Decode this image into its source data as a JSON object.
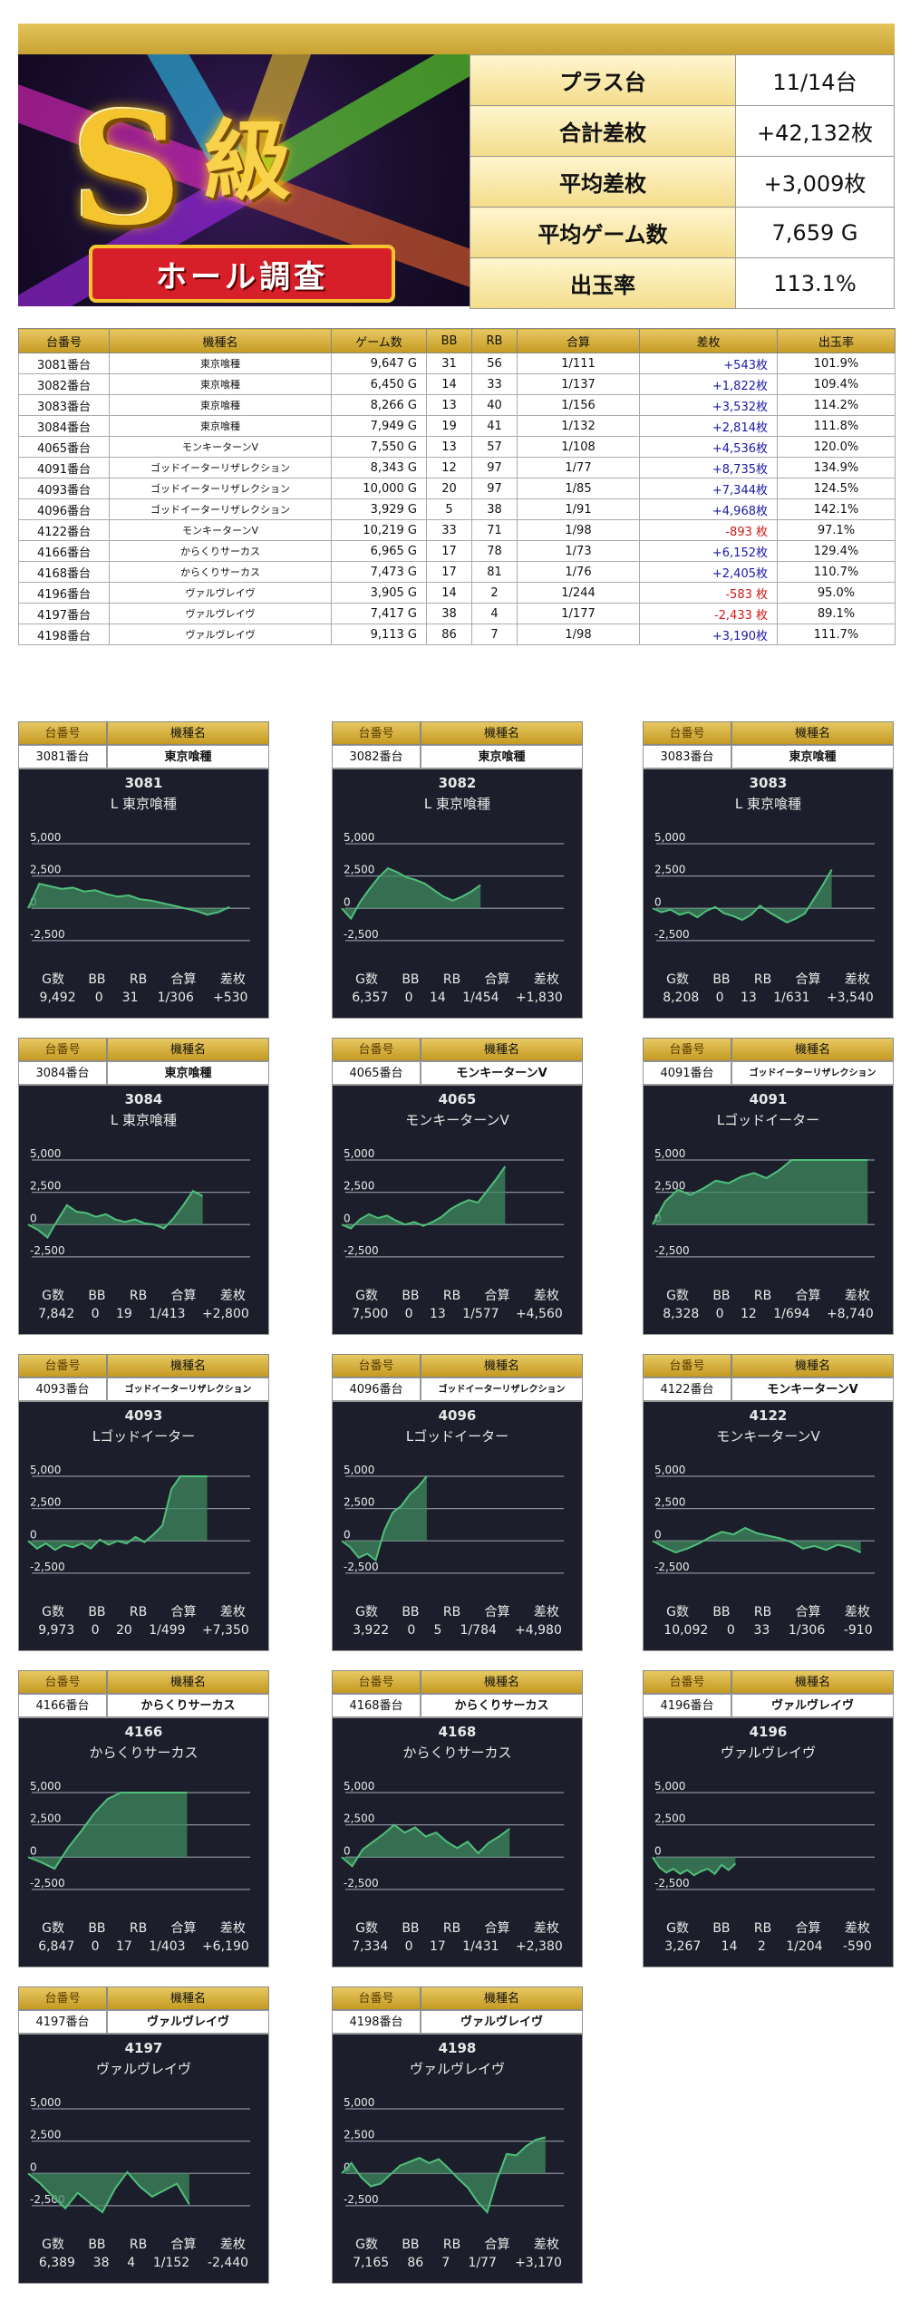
{
  "banner": {
    "logo_s": "S",
    "logo_kyu": "級",
    "ribbon": "ホール調査"
  },
  "summary": [
    {
      "label": "プラス台",
      "value": "11/14台"
    },
    {
      "label": "合計差枚",
      "value": "+42,132枚"
    },
    {
      "label": "平均差枚",
      "value": "+3,009枚"
    },
    {
      "label": "平均ゲーム数",
      "value": "7,659 G"
    },
    {
      "label": "出玉率",
      "value": "113.1%"
    }
  ],
  "table": {
    "headers": [
      "台番号",
      "機種名",
      "ゲーム数",
      "BB",
      "RB",
      "合算",
      "差枚",
      "出玉率"
    ],
    "rows": [
      {
        "no": "3081番台",
        "name": "東京喰種",
        "games": "9,647 G",
        "bb": "31",
        "rb": "56",
        "gassan": "1/111",
        "diff": "+543枚",
        "rate": "101.9%"
      },
      {
        "no": "3082番台",
        "name": "東京喰種",
        "games": "6,450 G",
        "bb": "14",
        "rb": "33",
        "gassan": "1/137",
        "diff": "+1,822枚",
        "rate": "109.4%"
      },
      {
        "no": "3083番台",
        "name": "東京喰種",
        "games": "8,266 G",
        "bb": "13",
        "rb": "40",
        "gassan": "1/156",
        "diff": "+3,532枚",
        "rate": "114.2%"
      },
      {
        "no": "3084番台",
        "name": "東京喰種",
        "games": "7,949 G",
        "bb": "19",
        "rb": "41",
        "gassan": "1/132",
        "diff": "+2,814枚",
        "rate": "111.8%"
      },
      {
        "no": "4065番台",
        "name": "モンキーターンV",
        "games": "7,550 G",
        "bb": "13",
        "rb": "57",
        "gassan": "1/108",
        "diff": "+4,536枚",
        "rate": "120.0%"
      },
      {
        "no": "4091番台",
        "name": "ゴッドイーターリザレクション",
        "games": "8,343 G",
        "bb": "12",
        "rb": "97",
        "gassan": "1/77",
        "diff": "+8,735枚",
        "rate": "134.9%"
      },
      {
        "no": "4093番台",
        "name": "ゴッドイーターリザレクション",
        "games": "10,000 G",
        "bb": "20",
        "rb": "97",
        "gassan": "1/85",
        "diff": "+7,344枚",
        "rate": "124.5%"
      },
      {
        "no": "4096番台",
        "name": "ゴッドイーターリザレクション",
        "games": "3,929 G",
        "bb": "5",
        "rb": "38",
        "gassan": "1/91",
        "diff": "+4,968枚",
        "rate": "142.1%"
      },
      {
        "no": "4122番台",
        "name": "モンキーターンV",
        "games": "10,219 G",
        "bb": "33",
        "rb": "71",
        "gassan": "1/98",
        "diff": "-893 枚",
        "rate": "97.1%"
      },
      {
        "no": "4166番台",
        "name": "からくりサーカス",
        "games": "6,965 G",
        "bb": "17",
        "rb": "78",
        "gassan": "1/73",
        "diff": "+6,152枚",
        "rate": "129.4%"
      },
      {
        "no": "4168番台",
        "name": "からくりサーカス",
        "games": "7,473 G",
        "bb": "17",
        "rb": "81",
        "gassan": "1/76",
        "diff": "+2,405枚",
        "rate": "110.7%"
      },
      {
        "no": "4196番台",
        "name": "ヴァルヴレイヴ",
        "games": "3,905 G",
        "bb": "14",
        "rb": "2",
        "gassan": "1/244",
        "diff": "-583 枚",
        "rate": "95.0%"
      },
      {
        "no": "4197番台",
        "name": "ヴァルヴレイヴ",
        "games": "7,417 G",
        "bb": "38",
        "rb": "4",
        "gassan": "1/177",
        "diff": "-2,433 枚",
        "rate": "89.1%"
      },
      {
        "no": "4198番台",
        "name": "ヴァルヴレイヴ",
        "games": "9,113 G",
        "bb": "86",
        "rb": "7",
        "gassan": "1/98",
        "diff": "+3,190枚",
        "rate": "111.7%"
      }
    ]
  },
  "card_headers": {
    "no": "台番号",
    "name": "機種名"
  },
  "stat_labels": [
    "G数",
    "BB",
    "RB",
    "合算",
    "差枚"
  ],
  "colors": {
    "positive": "#1a1aa8",
    "negative": "#d01818",
    "graph_line": "#4fbf7a",
    "graph_fill": "#3f8a60",
    "panel_bg": "#1c1f2b"
  },
  "cards": [
    {
      "no": "3081番台",
      "name": "東京喰種",
      "panel_no": "3081",
      "panel_name": "L 東京喰種",
      "stats": [
        "9,492",
        "0",
        "31",
        "1/306",
        "+530"
      ],
      "graph": {
        "y": [
          0,
          1900,
          1700,
          1500,
          1600,
          1300,
          1400,
          1100,
          900,
          1000,
          700,
          600,
          400,
          200,
          0,
          -200,
          -500,
          -300,
          100
        ],
        "x_end": 0.9
      }
    },
    {
      "no": "3082番台",
      "name": "東京喰種",
      "panel_no": "3082",
      "panel_name": "L 東京喰種",
      "stats": [
        "6,357",
        "0",
        "14",
        "1/454",
        "+1,830"
      ],
      "graph": {
        "y": [
          0,
          -800,
          500,
          1500,
          2400,
          3100,
          2800,
          2400,
          2200,
          1900,
          1400,
          900,
          600,
          900,
          1300,
          1800
        ],
        "x_end": 0.62
      }
    },
    {
      "no": "3083番台",
      "name": "東京喰種",
      "panel_no": "3083",
      "panel_name": "L 東京喰種",
      "stats": [
        "8,208",
        "0",
        "13",
        "1/631",
        "+3,540"
      ],
      "graph": {
        "y": [
          0,
          -300,
          -100,
          -500,
          -300,
          -700,
          -200,
          100,
          -400,
          -600,
          -900,
          -500,
          200,
          -300,
          -700,
          -1100,
          -800,
          -400,
          700,
          1800,
          3000
        ],
        "x_end": 0.8
      }
    },
    {
      "no": "3084番台",
      "name": "東京喰種",
      "panel_no": "3084",
      "panel_name": "L 東京喰種",
      "stats": [
        "7,842",
        "0",
        "19",
        "1/413",
        "+2,800"
      ],
      "graph": {
        "y": [
          0,
          -400,
          -1000,
          300,
          1500,
          1000,
          900,
          600,
          800,
          400,
          200,
          400,
          100,
          0,
          -300,
          500,
          1500,
          2600,
          2200
        ],
        "x_end": 0.78
      }
    },
    {
      "no": "4065番台",
      "name": "モンキーターンV",
      "panel_no": "4065",
      "panel_name": "モンキーターンV",
      "stats": [
        "7,500",
        "0",
        "13",
        "1/577",
        "+4,560"
      ],
      "graph": {
        "y": [
          0,
          -300,
          400,
          800,
          500,
          700,
          300,
          0,
          200,
          -100,
          200,
          600,
          1200,
          1600,
          1900,
          1700,
          2600,
          3500,
          4500
        ],
        "x_end": 0.73
      }
    },
    {
      "no": "4091番台",
      "name": "ゴッドイーターリザレクション",
      "panel_no": "4091",
      "panel_name": "Lゴッドイーター",
      "stats": [
        "8,328",
        "0",
        "12",
        "1/694",
        "+8,740"
      ],
      "graph": {
        "y": [
          0,
          1800,
          2700,
          2300,
          2800,
          3400,
          3200,
          3700,
          4000,
          3600,
          4200,
          5000,
          5000,
          5000,
          5000,
          5000,
          5000,
          5000
        ],
        "x_end": 0.96
      }
    },
    {
      "no": "4093番台",
      "name": "ゴッドイーターリザレクション",
      "panel_no": "4093",
      "panel_name": "Lゴッドイーター",
      "stats": [
        "9,973",
        "0",
        "20",
        "1/499",
        "+7,350"
      ],
      "graph": {
        "y": [
          0,
          -600,
          -200,
          -700,
          -300,
          -500,
          -200,
          -600,
          100,
          -300,
          0,
          -200,
          300,
          -100,
          500,
          1200,
          4000,
          5000,
          5000,
          5000,
          5000
        ],
        "x_end": 0.8
      }
    },
    {
      "no": "4096番台",
      "name": "ゴッドイーターリザレクション",
      "panel_no": "4096",
      "panel_name": "Lゴッドイーター",
      "stats": [
        "3,922",
        "0",
        "5",
        "1/784",
        "+4,980"
      ],
      "graph": {
        "y": [
          0,
          -500,
          -1300,
          -1000,
          -1500,
          800,
          2200,
          2700,
          3600,
          4200,
          5000
        ],
        "x_end": 0.38
      }
    },
    {
      "no": "4122番台",
      "name": "モンキーターンV",
      "panel_no": "4122",
      "panel_name": "モンキーターンV",
      "stats": [
        "10,092",
        "0",
        "33",
        "1/306",
        "-910"
      ],
      "graph": {
        "y": [
          0,
          -500,
          -900,
          -600,
          -200,
          300,
          700,
          500,
          1000,
          600,
          400,
          200,
          -100,
          -600,
          -400,
          -700,
          -300,
          -500,
          -900
        ],
        "x_end": 0.93
      }
    },
    {
      "no": "4166番台",
      "name": "からくりサーカス",
      "panel_no": "4166",
      "panel_name": "からくりサーカス",
      "stats": [
        "6,847",
        "0",
        "17",
        "1/403",
        "+6,190"
      ],
      "graph": {
        "y": [
          0,
          -400,
          -900,
          700,
          2000,
          3400,
          4500,
          5000,
          5000,
          5000,
          5000,
          5000,
          5000
        ],
        "x_end": 0.71
      }
    },
    {
      "no": "4168番台",
      "name": "からくりサーカス",
      "panel_no": "4168",
      "panel_name": "からくりサーカス",
      "stats": [
        "7,334",
        "0",
        "17",
        "1/431",
        "+2,380"
      ],
      "graph": {
        "y": [
          0,
          -700,
          600,
          1200,
          1800,
          2500,
          1900,
          2300,
          1600,
          1900,
          1200,
          700,
          1200,
          300,
          1100,
          1600,
          2200
        ],
        "x_end": 0.75
      }
    },
    {
      "no": "4196番台",
      "name": "ヴァルヴレイヴ",
      "panel_no": "4196",
      "panel_name": "ヴァルヴレイヴ",
      "stats": [
        "3,267",
        "14",
        "2",
        "1/204",
        "-590"
      ],
      "graph": {
        "y": [
          0,
          -800,
          -1200,
          -900,
          -1300,
          -1000,
          -1400,
          -1100,
          -900,
          -1300,
          -600,
          -1000,
          -500
        ],
        "x_end": 0.37
      }
    },
    {
      "no": "4197番台",
      "name": "ヴァルヴレイヴ",
      "panel_no": "4197",
      "panel_name": "ヴァルヴレイヴ",
      "stats": [
        "6,389",
        "38",
        "4",
        "1/152",
        "-2,440"
      ],
      "graph": {
        "y": [
          0,
          -800,
          -1800,
          -2700,
          -1500,
          -2300,
          -3000,
          -1200,
          100,
          -1000,
          -1800,
          -1300,
          -800,
          -2400
        ],
        "x_end": 0.72
      }
    },
    {
      "no": "4198番台",
      "name": "ヴァルヴレイヴ",
      "panel_no": "4198",
      "panel_name": "ヴァルヴレイヴ",
      "stats": [
        "7,165",
        "86",
        "7",
        "1/77",
        "+3,170"
      ],
      "graph": {
        "y": [
          0,
          800,
          -300,
          -1000,
          -800,
          -100,
          600,
          900,
          1200,
          800,
          1100,
          400,
          -400,
          -1100,
          -2200,
          -3000,
          -500,
          1500,
          1400,
          2100,
          2600,
          2800
        ],
        "x_end": 0.91
      }
    }
  ]
}
